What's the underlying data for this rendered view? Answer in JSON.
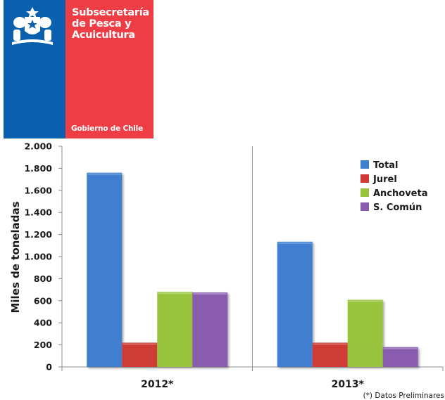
{
  "logo": {
    "org_lines": [
      "Subsecretaría",
      "de Pesca y",
      "Acuicultura"
    ],
    "government": "Gobierno de Chile",
    "colors": {
      "blue": "#0a5fae",
      "red": "#ef3d45"
    },
    "emblem_icon": "coat-of-arms-icon"
  },
  "chart_data": {
    "type": "bar",
    "categories": [
      "2012*",
      "2013*"
    ],
    "series": [
      {
        "name": "Total",
        "values": [
          1760,
          1135
        ],
        "color": "#3f7fd0"
      },
      {
        "name": "Jurel",
        "values": [
          220,
          220
        ],
        "color": "#cf3a34"
      },
      {
        "name": "Anchoveta",
        "values": [
          680,
          608
        ],
        "color": "#98c43d"
      },
      {
        "name": "S. Común",
        "values": [
          675,
          180
        ],
        "color": "#8a5cb0"
      }
    ],
    "ylabel": "Miles de toneladas",
    "ylim": [
      0,
      2000
    ],
    "yticks": [
      0,
      200,
      400,
      600,
      800,
      1000,
      1200,
      1400,
      1600,
      1800,
      2000
    ],
    "ytick_labels": [
      "0",
      "200",
      "400",
      "600",
      "800",
      "1.000",
      "1.200",
      "1.400",
      "1.600",
      "1.800",
      "2.000"
    ],
    "legend_position": "top-right",
    "grid": false,
    "note": "(*) Datos Preliminares"
  }
}
